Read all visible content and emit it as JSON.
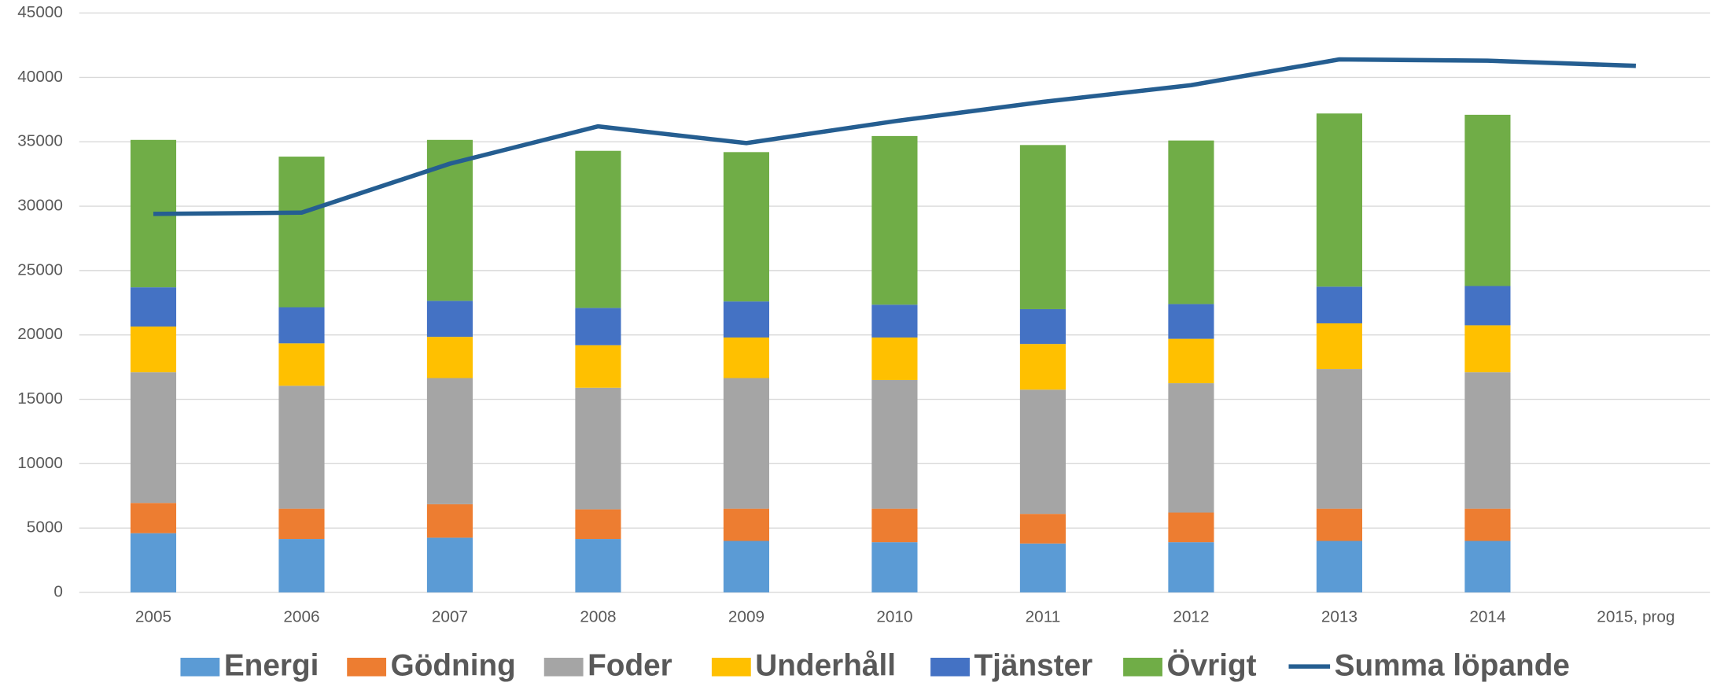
{
  "chart_data": {
    "type": "stacked-bar-line",
    "categories": [
      "2005",
      "2006",
      "2007",
      "2008",
      "2009",
      "2010",
      "2011",
      "2012",
      "2013",
      "2014",
      "2015, prog"
    ],
    "series": [
      {
        "name": "Energi",
        "color": "#5b9bd5",
        "values": [
          4600,
          4150,
          4250,
          4150,
          4000,
          3900,
          3800,
          3900,
          4000,
          4000,
          null
        ]
      },
      {
        "name": "Gödning",
        "color": "#ed7d31",
        "values": [
          2350,
          2350,
          2600,
          2300,
          2500,
          2600,
          2300,
          2300,
          2500,
          2500,
          null
        ]
      },
      {
        "name": "Foder",
        "color": "#a5a5a5",
        "values": [
          10150,
          9550,
          9800,
          9450,
          10150,
          10000,
          9650,
          10050,
          10850,
          10600,
          null
        ]
      },
      {
        "name": "Underhåll",
        "color": "#ffc000",
        "values": [
          3550,
          3300,
          3200,
          3300,
          3150,
          3300,
          3550,
          3450,
          3550,
          3650,
          null
        ]
      },
      {
        "name": "Tjänster",
        "color": "#4472c4",
        "values": [
          3050,
          2800,
          2800,
          2900,
          2800,
          2550,
          2700,
          2700,
          2850,
          3050,
          null
        ]
      },
      {
        "name": "Övrigt",
        "color": "#70ad47",
        "values": [
          11450,
          11700,
          12500,
          12200,
          11600,
          13100,
          12750,
          12700,
          13450,
          13300,
          null
        ]
      },
      {
        "name": "Summa löpande",
        "color": "#255e91",
        "type": "line",
        "values": [
          29400,
          29500,
          33300,
          36200,
          34900,
          36600,
          38100,
          39400,
          41400,
          41300,
          40900
        ]
      }
    ],
    "ylim": [
      0,
      45000
    ],
    "yticks": [
      0,
      5000,
      10000,
      15000,
      20000,
      25000,
      30000,
      35000,
      40000,
      45000
    ],
    "grid": true,
    "legend": "bottom"
  }
}
